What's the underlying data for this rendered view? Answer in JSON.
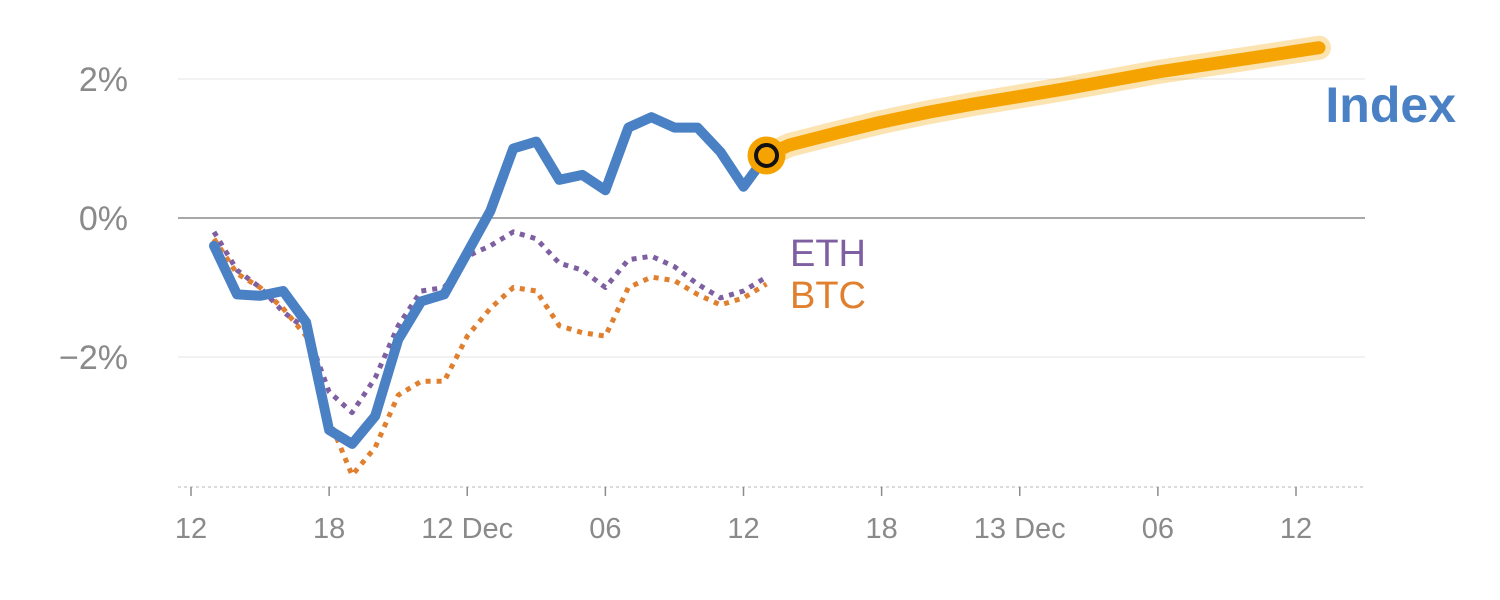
{
  "chart_data": {
    "type": "line",
    "title": "",
    "xlabel": "",
    "ylabel": "",
    "ylim": [
      -3.8,
      2.6
    ],
    "y_ticks": [
      {
        "value": 2,
        "label": "2%"
      },
      {
        "value": 0,
        "label": "0%"
      },
      {
        "value": -2,
        "label": "−2%"
      }
    ],
    "x_ticks": [
      {
        "hour": 12,
        "label": "12"
      },
      {
        "hour": 18,
        "label": "18"
      },
      {
        "hour": 24,
        "label": "12 Dec"
      },
      {
        "hour": 30,
        "label": "06"
      },
      {
        "hour": 36,
        "label": "12"
      },
      {
        "hour": 42,
        "label": "18"
      },
      {
        "hour": 48,
        "label": "13 Dec"
      },
      {
        "hour": 54,
        "label": "06"
      },
      {
        "hour": 60,
        "label": "12"
      }
    ],
    "zero_line": 0,
    "grid": true,
    "series": [
      {
        "name": "Index",
        "color": "#4a80c4",
        "style": "solid",
        "points": [
          [
            13,
            -0.4
          ],
          [
            14,
            -1.1
          ],
          [
            15,
            -1.12
          ],
          [
            16,
            -1.05
          ],
          [
            17,
            -1.5
          ],
          [
            18,
            -3.05
          ],
          [
            19,
            -3.25
          ],
          [
            20,
            -2.85
          ],
          [
            21,
            -1.75
          ],
          [
            22,
            -1.2
          ],
          [
            23,
            -1.1
          ],
          [
            24,
            -0.5
          ],
          [
            25,
            0.1
          ],
          [
            26,
            1.0
          ],
          [
            27,
            1.1
          ],
          [
            28,
            0.55
          ],
          [
            29,
            0.62
          ],
          [
            30,
            0.4
          ],
          [
            31,
            1.3
          ],
          [
            32,
            1.45
          ],
          [
            33,
            1.3
          ],
          [
            34,
            1.3
          ],
          [
            35,
            0.95
          ],
          [
            36,
            0.45
          ],
          [
            37,
            0.9
          ]
        ]
      },
      {
        "name": "ETH",
        "color": "#7e5fa1",
        "style": "dotted",
        "points": [
          [
            13,
            -0.2
          ],
          [
            14,
            -0.75
          ],
          [
            15,
            -1.0
          ],
          [
            16,
            -1.35
          ],
          [
            17,
            -1.6
          ],
          [
            18,
            -2.5
          ],
          [
            19,
            -2.8
          ],
          [
            20,
            -2.3
          ],
          [
            21,
            -1.55
          ],
          [
            22,
            -1.05
          ],
          [
            23,
            -1.0
          ],
          [
            24,
            -0.55
          ],
          [
            25,
            -0.4
          ],
          [
            26,
            -0.2
          ],
          [
            27,
            -0.3
          ],
          [
            28,
            -0.65
          ],
          [
            29,
            -0.75
          ],
          [
            30,
            -1.0
          ],
          [
            31,
            -0.6
          ],
          [
            32,
            -0.55
          ],
          [
            33,
            -0.7
          ],
          [
            34,
            -0.95
          ],
          [
            35,
            -1.15
          ],
          [
            36,
            -1.05
          ],
          [
            37,
            -0.85
          ]
        ]
      },
      {
        "name": "BTC",
        "color": "#e07f2e",
        "style": "dotted",
        "points": [
          [
            13,
            -0.3
          ],
          [
            14,
            -0.8
          ],
          [
            15,
            -1.0
          ],
          [
            16,
            -1.3
          ],
          [
            17,
            -1.7
          ],
          [
            18,
            -2.9
          ],
          [
            19,
            -3.7
          ],
          [
            20,
            -3.3
          ],
          [
            21,
            -2.55
          ],
          [
            22,
            -2.35
          ],
          [
            23,
            -2.35
          ],
          [
            24,
            -1.7
          ],
          [
            25,
            -1.3
          ],
          [
            26,
            -1.0
          ],
          [
            27,
            -1.05
          ],
          [
            28,
            -1.55
          ],
          [
            29,
            -1.65
          ],
          [
            30,
            -1.7
          ],
          [
            31,
            -1.0
          ],
          [
            32,
            -0.85
          ],
          [
            33,
            -0.9
          ],
          [
            34,
            -1.1
          ],
          [
            35,
            -1.25
          ],
          [
            36,
            -1.15
          ],
          [
            37,
            -0.95
          ]
        ]
      },
      {
        "name": "",
        "color": "#f5a300",
        "style": "forecast",
        "points": [
          [
            37,
            0.9
          ],
          [
            38,
            1.05
          ],
          [
            40,
            1.22
          ],
          [
            42,
            1.38
          ],
          [
            44,
            1.52
          ],
          [
            46,
            1.64
          ],
          [
            48,
            1.75
          ],
          [
            50,
            1.86
          ],
          [
            52,
            1.98
          ],
          [
            54,
            2.1
          ],
          [
            56,
            2.2
          ],
          [
            58,
            2.3
          ],
          [
            60,
            2.4
          ],
          [
            61,
            2.45
          ]
        ]
      }
    ],
    "marker": {
      "hour": 37,
      "value": 0.9
    },
    "labels": {
      "eth": "ETH",
      "btc": "BTC",
      "index": "Index"
    }
  }
}
